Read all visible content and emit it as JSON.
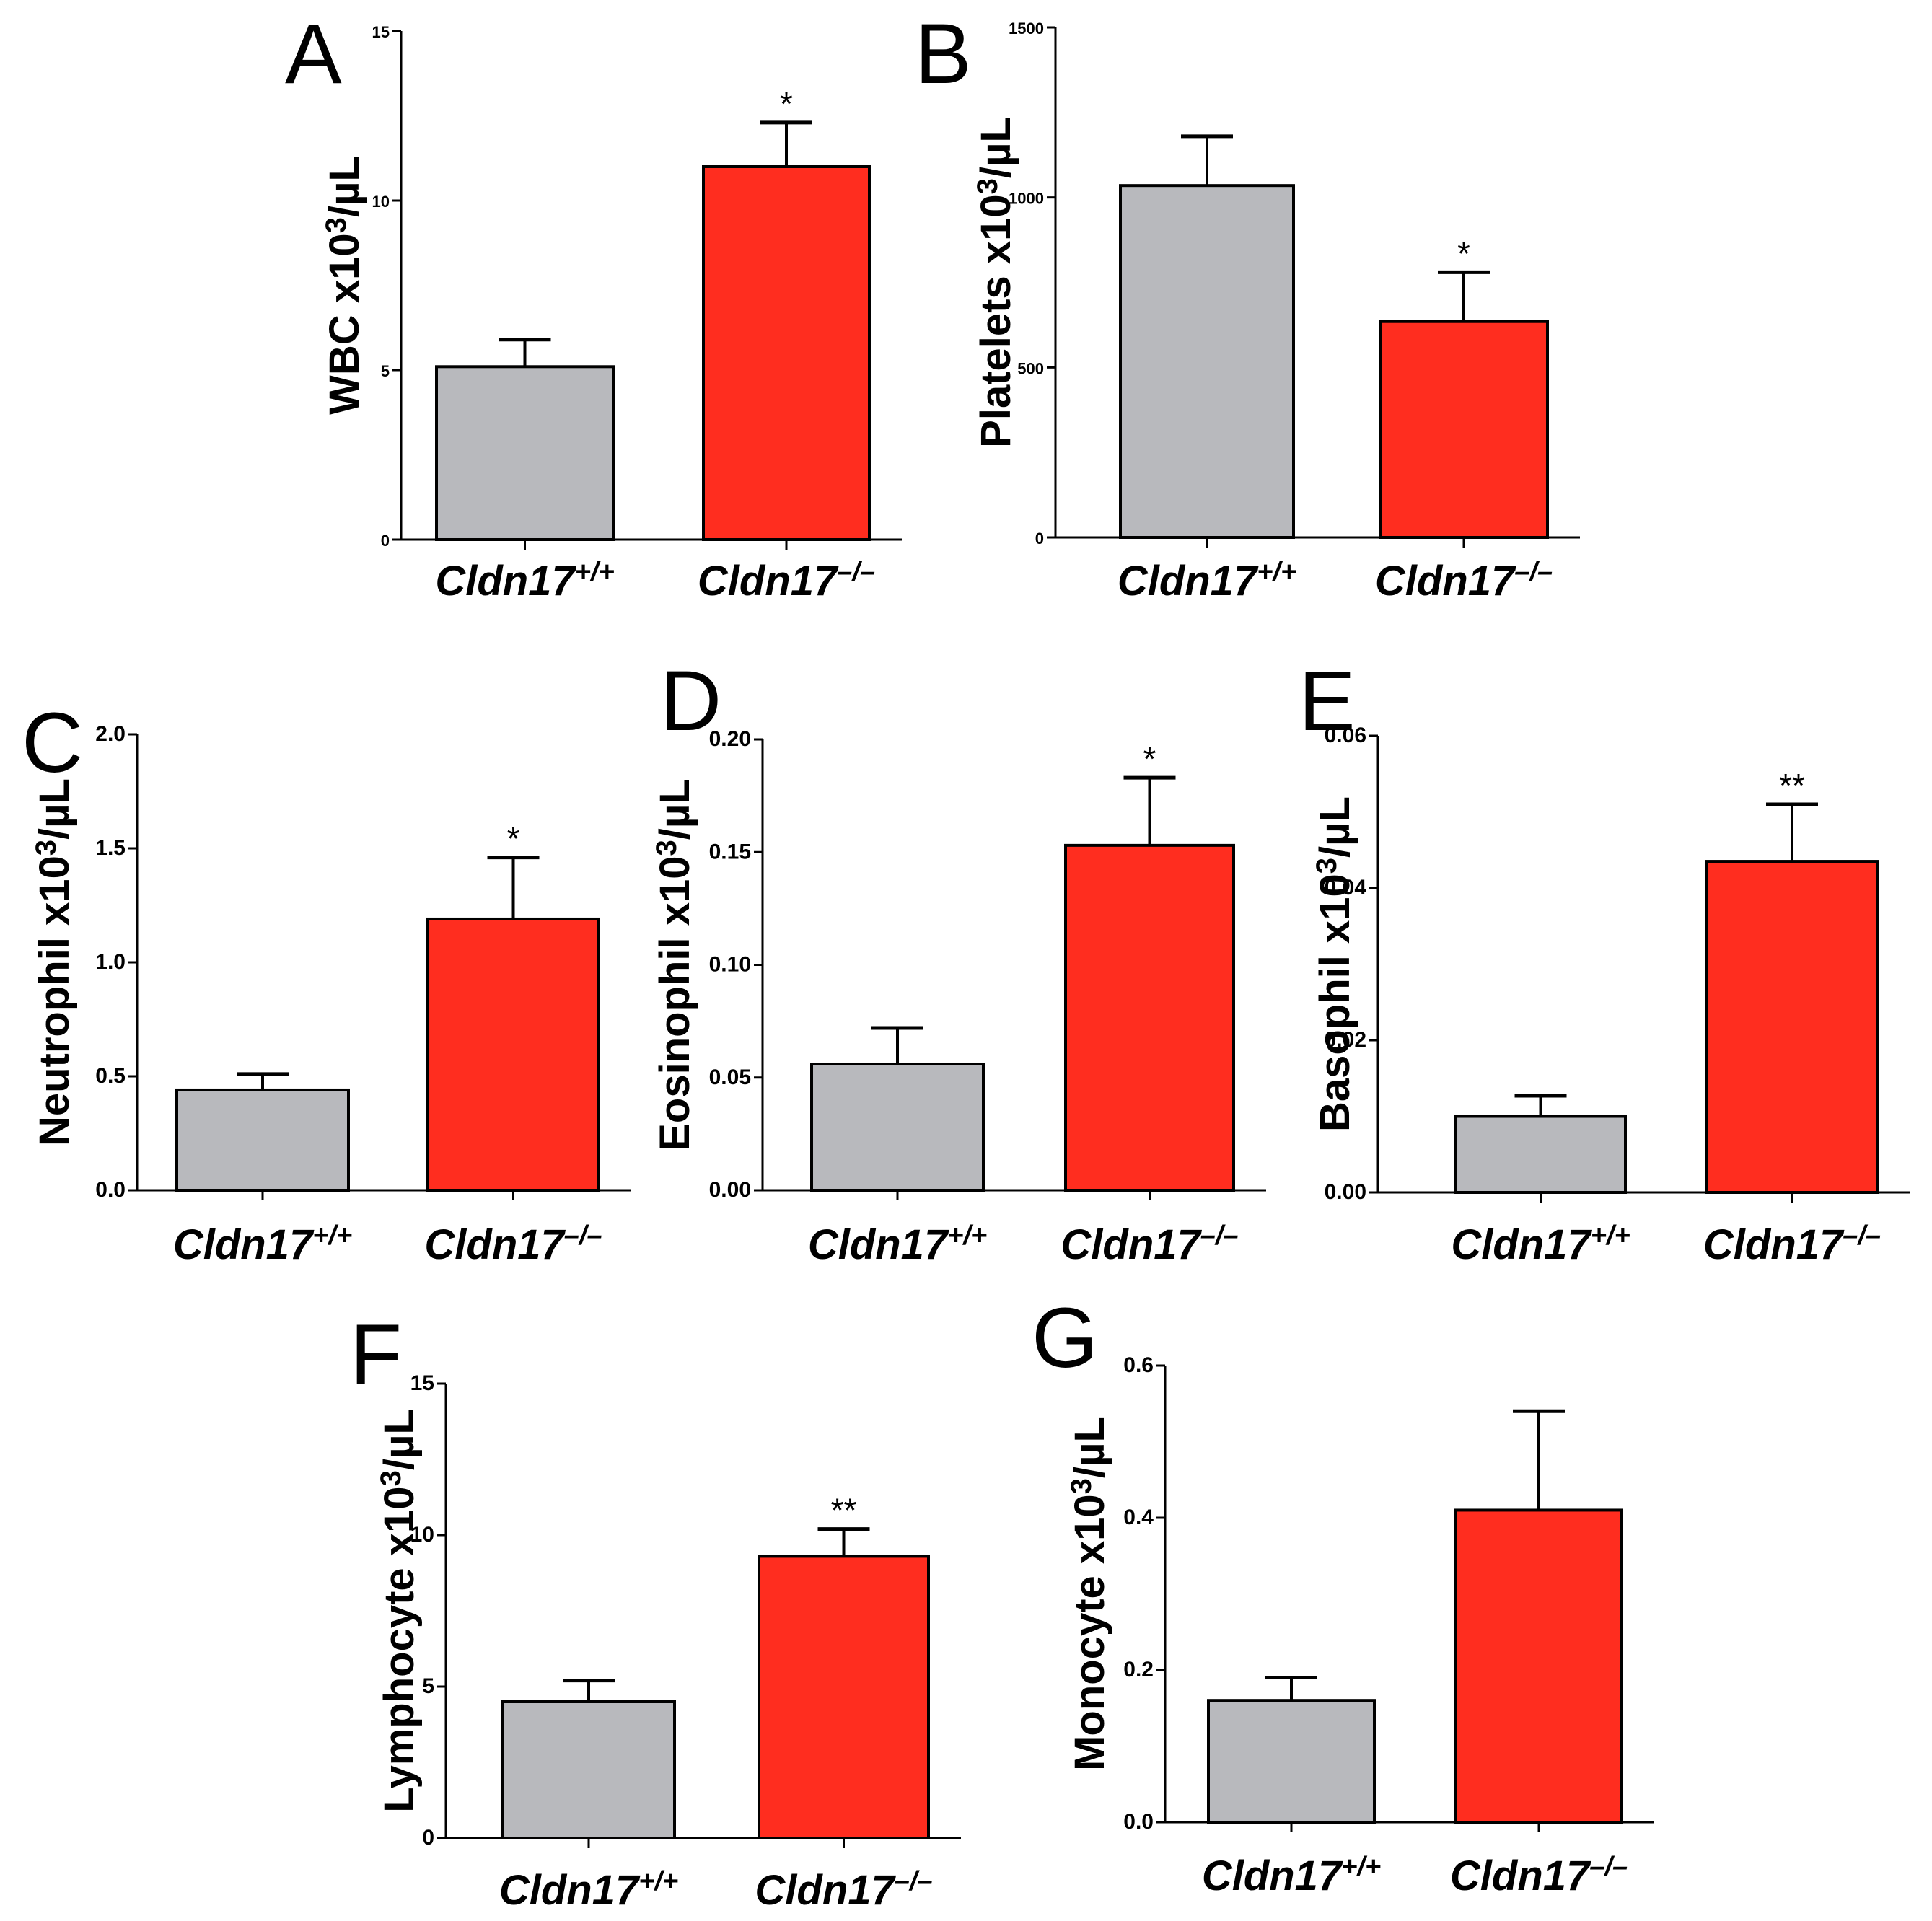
{
  "chart_data": [
    {
      "id": "A",
      "type": "bar",
      "panel_label": "A",
      "ylabel": "WBC x10",
      "ylabel_sup": "3",
      "ylabel_unit": "/µL",
      "categories": [
        {
          "base": "Cldn17",
          "sup": "+/+"
        },
        {
          "base": "Cldn17",
          "sup": "–/–"
        }
      ],
      "values": [
        5.1,
        11.0
      ],
      "errors": [
        0.8,
        1.3
      ],
      "significance": [
        "",
        "*"
      ],
      "ylim": [
        0,
        15
      ],
      "yticks": [
        0,
        5,
        10,
        15
      ],
      "colors": [
        "#b8b9bd",
        "#ff2d1f"
      ]
    },
    {
      "id": "B",
      "type": "bar",
      "panel_label": "B",
      "ylabel": "Platelets x10",
      "ylabel_sup": "3",
      "ylabel_unit": "/µL",
      "categories": [
        {
          "base": "Cldn17",
          "sup": "+/+"
        },
        {
          "base": "Cldn17",
          "sup": "–/–"
        }
      ],
      "values": [
        1035,
        635
      ],
      "errors": [
        145,
        145
      ],
      "significance": [
        "",
        "*"
      ],
      "ylim": [
        0,
        1500
      ],
      "yticks": [
        0,
        500,
        1000,
        1500
      ],
      "colors": [
        "#b8b9bd",
        "#ff2d1f"
      ]
    },
    {
      "id": "C",
      "type": "bar",
      "panel_label": "C",
      "ylabel": "Neutrophil x10",
      "ylabel_sup": "3",
      "ylabel_unit": "/µL",
      "categories": [
        {
          "base": "Cldn17",
          "sup": "+/+"
        },
        {
          "base": "Cldn17",
          "sup": "–/–"
        }
      ],
      "values": [
        0.44,
        1.19
      ],
      "errors": [
        0.07,
        0.27
      ],
      "significance": [
        "",
        "*"
      ],
      "ylim": [
        0,
        2.0
      ],
      "yticks": [
        "0.0",
        "0.5",
        "1.0",
        "1.5",
        "2.0"
      ],
      "colors": [
        "#b8b9bd",
        "#ff2d1f"
      ]
    },
    {
      "id": "D",
      "type": "bar",
      "panel_label": "D",
      "ylabel": "Eosinophil x10",
      "ylabel_sup": "3",
      "ylabel_unit": "/µL",
      "categories": [
        {
          "base": "Cldn17",
          "sup": "+/+"
        },
        {
          "base": "Cldn17",
          "sup": "–/–"
        }
      ],
      "values": [
        0.056,
        0.153
      ],
      "errors": [
        0.016,
        0.03
      ],
      "significance": [
        "",
        "*"
      ],
      "ylim": [
        0,
        0.2
      ],
      "yticks": [
        "0.00",
        "0.05",
        "0.10",
        "0.15",
        "0.20"
      ],
      "colors": [
        "#b8b9bd",
        "#ff2d1f"
      ]
    },
    {
      "id": "E",
      "type": "bar",
      "panel_label": "E",
      "ylabel": "Basophil x10",
      "ylabel_sup": "3",
      "ylabel_unit": "/µL",
      "categories": [
        {
          "base": "Cldn17",
          "sup": "+/+"
        },
        {
          "base": "Cldn17",
          "sup": "–/–"
        }
      ],
      "values": [
        0.01,
        0.0435
      ],
      "errors": [
        0.0027,
        0.0075
      ],
      "significance": [
        "",
        "**"
      ],
      "ylim": [
        0,
        0.06
      ],
      "yticks": [
        "0.00",
        "0.02",
        "0.04",
        "0.06"
      ],
      "colors": [
        "#b8b9bd",
        "#ff2d1f"
      ]
    },
    {
      "id": "F",
      "type": "bar",
      "panel_label": "F",
      "ylabel": "Lymphocyte x10",
      "ylabel_sup": "3",
      "ylabel_unit": "/µL",
      "categories": [
        {
          "base": "Cldn17",
          "sup": "+/+"
        },
        {
          "base": "Cldn17",
          "sup": "–/–"
        }
      ],
      "values": [
        4.5,
        9.3
      ],
      "errors": [
        0.7,
        0.9
      ],
      "significance": [
        "",
        "**"
      ],
      "ylim": [
        0,
        15
      ],
      "yticks": [
        "0",
        "5",
        "10",
        "15"
      ],
      "colors": [
        "#b8b9bd",
        "#ff2d1f"
      ]
    },
    {
      "id": "G",
      "type": "bar",
      "panel_label": "G",
      "ylabel": "Monocyte x10",
      "ylabel_sup": "3",
      "ylabel_unit": "/µL",
      "categories": [
        {
          "base": "Cldn17",
          "sup": "+/+"
        },
        {
          "base": "Cldn17",
          "sup": "–/–"
        }
      ],
      "values": [
        0.16,
        0.41
      ],
      "errors": [
        0.03,
        0.13
      ],
      "significance": [
        "",
        ""
      ],
      "ylim": [
        0,
        0.6
      ],
      "yticks": [
        "0.0",
        "0.2",
        "0.4",
        "0.6"
      ],
      "colors": [
        "#b8b9bd",
        "#ff2d1f"
      ]
    }
  ]
}
